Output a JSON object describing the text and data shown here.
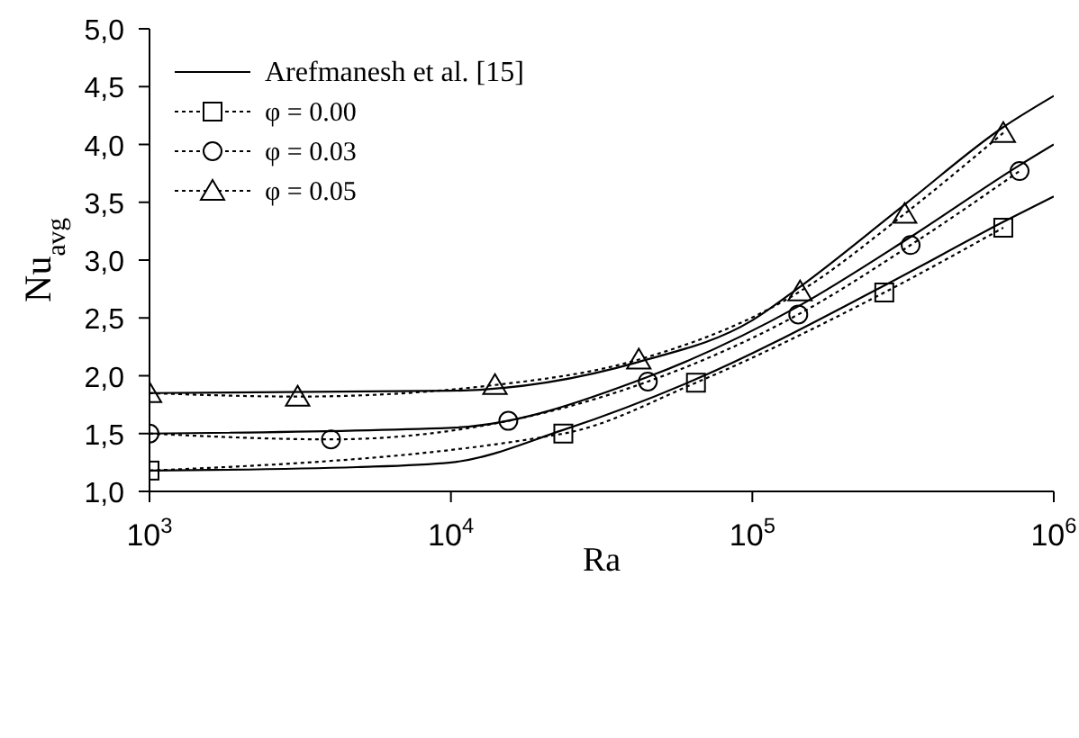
{
  "chart_data": {
    "type": "line",
    "xlabel": "Ra",
    "ylabel": "Nu$_{avg}$",
    "log": "x",
    "legend": "top left",
    "xlim": [
      1000,
      1000000
    ],
    "xticks": [
      {
        "value": 1000,
        "label": "10$^{3}$"
      },
      {
        "value": 10000,
        "label": "10$^{4}$"
      },
      {
        "value": 100000,
        "label": "10$^{5}$"
      },
      {
        "value": 1000000,
        "label": "10$^{6}$"
      }
    ],
    "ylim": [
      1,
      5
    ],
    "yticks": [
      {
        "value": 1,
        "label": "1,0"
      },
      {
        "value": 1.5,
        "label": "1,5"
      },
      {
        "value": 2,
        "label": "2,0"
      },
      {
        "value": 2.5,
        "label": "2,5"
      },
      {
        "value": 3,
        "label": "3,0"
      },
      {
        "value": 3.5,
        "label": "3,5"
      },
      {
        "value": 4,
        "label": "4,0"
      },
      {
        "value": 4.5,
        "label": "4,5"
      },
      {
        "value": 5,
        "label": "5,0"
      }
    ],
    "series": [
      {
        "name": "Arefmanesh et al. [15]",
        "color": "#000000",
        "line_style": "solid",
        "marker": "none",
        "x": [
          1000,
          4900,
          10000,
          23500,
          65000,
          274000,
          680000,
          1000000
        ],
        "values": [
          1.18,
          1.21,
          1.25,
          1.53,
          1.97,
          2.78,
          3.33,
          3.55
        ]
      },
      {
        "color": "#000000",
        "line_style": "solid",
        "marker": "none",
        "x": [
          1000,
          10000,
          45000,
          142000,
          335000,
          770000,
          1000000
        ],
        "values": [
          1.5,
          1.55,
          1.99,
          2.6,
          3.2,
          3.82,
          4.0
        ]
      },
      {
        "color": "#000000",
        "line_style": "solid",
        "marker": "none",
        "x": [
          1000,
          10000,
          42000,
          100000,
          144000,
          320000,
          680000,
          1000000
        ],
        "values": [
          1.85,
          1.87,
          2.12,
          2.48,
          2.77,
          3.48,
          4.15,
          4.42
        ]
      },
      {
        "name": "φ = 0.00",
        "color": "#000000",
        "line_style": "dotted",
        "marker": "square",
        "x": [
          1000,
          23600,
          65000,
          274000,
          680000
        ],
        "values": [
          1.18,
          1.5,
          1.94,
          2.72,
          3.28
        ]
      },
      {
        "name": "φ = 0.03",
        "color": "#000000",
        "line_style": "dotted",
        "marker": "circle",
        "x": [
          1000,
          4000,
          15500,
          45000,
          142000,
          335000,
          770000
        ],
        "values": [
          1.5,
          1.45,
          1.61,
          1.95,
          2.53,
          3.13,
          3.77
        ]
      },
      {
        "name": "φ = 0.05",
        "color": "#000000",
        "line_style": "dotted",
        "marker": "triangle",
        "x": [
          1000,
          3100,
          14000,
          42000,
          144000,
          320000,
          680000
        ],
        "values": [
          1.85,
          1.82,
          1.92,
          2.14,
          2.73,
          3.4,
          4.1
        ]
      }
    ]
  }
}
